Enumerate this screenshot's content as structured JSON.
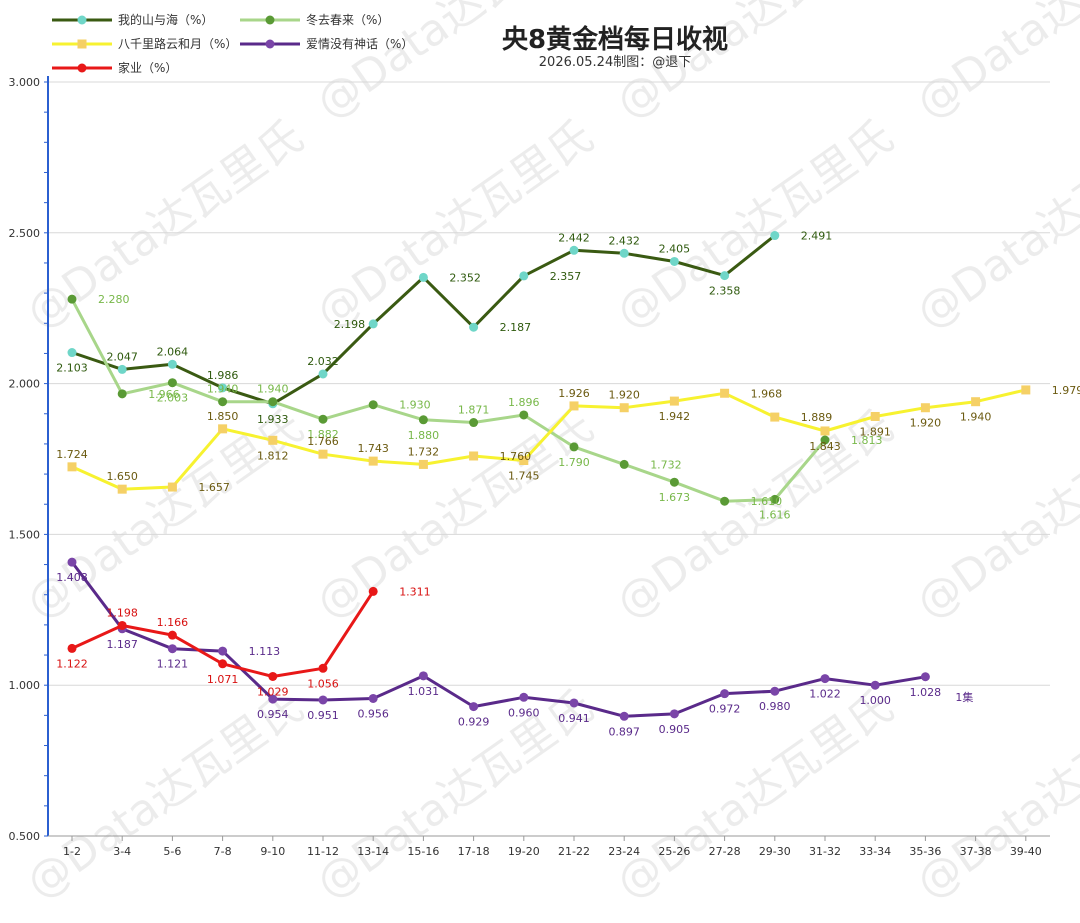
{
  "chart_data": {
    "type": "line",
    "title": "央8黄金档每日收视",
    "subtitle": "2026.05.24制图：@退下",
    "watermark": "@Data达瓦里氏",
    "ylim": [
      0.5,
      3.0
    ],
    "yticks": [
      "0.500",
      "1.000",
      "1.500",
      "2.000",
      "2.500",
      "3.000"
    ],
    "ytick_values": [
      0.5,
      1.0,
      1.5,
      2.0,
      2.5,
      3.0
    ],
    "grid": "horizontal",
    "legend_position": "top-left",
    "categories": [
      "1-2",
      "3-4",
      "5-6",
      "7-8",
      "9-10",
      "11-12",
      "13-14",
      "15-16",
      "17-18",
      "19-20",
      "21-22",
      "23-24",
      "25-26",
      "27-28",
      "29-30",
      "31-32",
      "33-34",
      "35-36",
      "37-38",
      "39-40"
    ],
    "series": [
      {
        "name": "我的山与海（%）",
        "line_color": "#3a5a12",
        "marker_color": "#6fd6c8",
        "marker": "circle",
        "label_color": "#2f5a0e",
        "values": [
          2.103,
          2.047,
          2.064,
          1.986,
          1.933,
          2.032,
          2.198,
          2.352,
          2.187,
          2.357,
          2.442,
          2.432,
          2.405,
          2.358,
          2.491,
          null,
          null,
          null,
          null,
          null
        ],
        "labels": [
          "2.103",
          "2.047",
          "2.064",
          "1.986",
          "1.933",
          "2.032",
          "2.198",
          "2.352",
          "2.187",
          "2.357",
          "2.442",
          "2.432",
          "2.405",
          "2.358",
          "2.491",
          null,
          null,
          null,
          null,
          null
        ],
        "label_pos": [
          "below",
          "above",
          "above",
          "above",
          "below",
          "above",
          "left",
          "right",
          "right",
          "right",
          "above",
          "above",
          "above",
          "below",
          "right",
          null,
          null,
          null,
          null,
          null
        ]
      },
      {
        "name": "冬去春来（%）",
        "line_color": "#a8d68a",
        "marker_color": "#5a9a35",
        "marker": "circle",
        "label_color": "#78b84a",
        "values": [
          2.28,
          1.966,
          2.003,
          1.94,
          1.94,
          1.882,
          1.93,
          1.88,
          1.871,
          1.896,
          1.79,
          1.732,
          1.673,
          1.61,
          1.616,
          1.813,
          null,
          null,
          null,
          null
        ],
        "labels": [
          "2.280",
          "1.966",
          "2.003",
          "1.940",
          "1.940",
          "1.882",
          "1.930",
          "1.880",
          "1.871",
          "1.896",
          "1.790",
          "1.732",
          "1.673",
          "1.610",
          "1.616",
          "1.813",
          null,
          null,
          null,
          null
        ],
        "label_pos": [
          "right",
          "right",
          "below",
          "above",
          "above",
          "below",
          "right",
          "below",
          "above",
          "above",
          "below",
          "right",
          "below",
          "right",
          "below",
          "right",
          null,
          null,
          null,
          null
        ]
      },
      {
        "name": "八千里路云和月（%）",
        "line_color": "#f7f230",
        "marker_color": "#f5d066",
        "marker": "square",
        "label_color": "#6b5a10",
        "values": [
          1.724,
          1.65,
          1.657,
          1.85,
          1.812,
          1.766,
          1.743,
          1.732,
          1.76,
          1.745,
          1.926,
          1.92,
          1.942,
          1.968,
          1.889,
          1.843,
          1.891,
          1.92,
          1.94,
          1.979
        ],
        "labels": [
          "1.724",
          "1.650",
          "1.657",
          "1.850",
          "1.812",
          "1.766",
          "1.743",
          "1.732",
          "1.760",
          "1.745",
          "1.926",
          "1.920",
          "1.942",
          "1.968",
          "1.889",
          "1.843",
          "1.891",
          "1.920",
          "1.940",
          "1.979"
        ],
        "label_pos": [
          "above",
          "above",
          "right",
          "above",
          "below",
          "above",
          "above",
          "above",
          "right",
          "below",
          "above",
          "above",
          "below",
          "right",
          "right",
          "below",
          "below",
          "below",
          "below",
          "right"
        ]
      },
      {
        "name": "爱情没有神话（%）",
        "line_color": "#5a2a8a",
        "marker_color": "#7a45a8",
        "marker": "circle",
        "label_color": "#5a2a8a",
        "values": [
          1.408,
          1.187,
          1.121,
          1.113,
          0.954,
          0.951,
          0.956,
          1.031,
          0.929,
          0.96,
          0.941,
          0.897,
          0.905,
          0.972,
          0.98,
          1.022,
          1.0,
          1.028,
          null,
          null
        ],
        "labels": [
          "1.408",
          "1.187",
          "1.121",
          "1.113",
          "0.954",
          "0.951",
          "0.956",
          "1.031",
          "0.929",
          "0.960",
          "0.941",
          "0.897",
          "0.905",
          "0.972",
          "0.980",
          "1.022",
          "1.000",
          "1.028",
          null,
          null
        ],
        "label_pos": [
          "below",
          "below",
          "below",
          "right",
          "below",
          "below",
          "below",
          "below",
          "below",
          "below",
          "below",
          "below",
          "below",
          "below",
          "below",
          "below",
          "below",
          "below",
          null,
          null
        ]
      },
      {
        "name": "家业（%）",
        "line_color": "#e81818",
        "marker_color": "#e81818",
        "marker": "circle",
        "label_color": "#d81010",
        "values": [
          1.122,
          1.198,
          1.166,
          1.071,
          1.029,
          1.056,
          1.311,
          null,
          null,
          null,
          null,
          null,
          null,
          null,
          null,
          null,
          null,
          null,
          null,
          null
        ],
        "labels": [
          "1.122",
          "1.198",
          "1.166",
          "1.071",
          "1.029",
          "1.056",
          "1.311",
          null,
          null,
          null,
          null,
          null,
          null,
          null,
          null,
          null,
          null,
          null,
          null,
          null
        ],
        "label_pos": [
          "below",
          "above",
          "above",
          "below",
          "below",
          "below",
          "right",
          null,
          null,
          null,
          null,
          null,
          null,
          null,
          null,
          null,
          null,
          null,
          null,
          null
        ]
      }
    ],
    "annotations": [
      {
        "text": "1集",
        "series": 3,
        "index": 17
      }
    ]
  }
}
